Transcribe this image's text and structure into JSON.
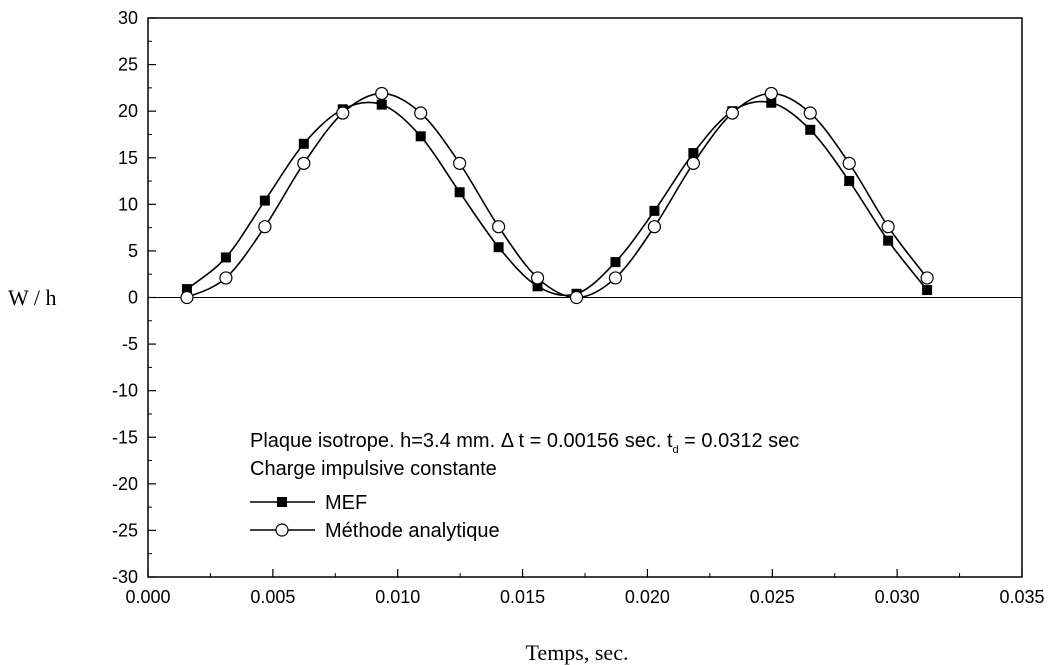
{
  "chart_data": {
    "type": "line",
    "xlabel": "Temps, sec.",
    "ylabel": "W / h",
    "xlim": [
      0.0,
      0.035
    ],
    "ylim": [
      -30,
      30
    ],
    "x_ticks": [
      "0.000",
      "0.005",
      "0.010",
      "0.015",
      "0.020",
      "0.025",
      "0.030",
      "0.035"
    ],
    "y_ticks": [
      "-30",
      "-25",
      "-20",
      "-15",
      "-10",
      "-5",
      "0",
      "5",
      "10",
      "15",
      "20",
      "25",
      "30"
    ],
    "grid": false,
    "zero_line": true,
    "annotation": {
      "line1_main": "Plaque isotrope. h=3.4 mm. Δ t = 0.00156 sec. t",
      "line1_sub": "d",
      "line1_tail": " = 0.0312 sec",
      "line2": "Charge impulsive constante"
    },
    "legend_position": "bottom-center",
    "series": [
      {
        "name": "MEF",
        "marker": "filled-square",
        "color": "#000000",
        "x": [
          0.00156,
          0.00312,
          0.00468,
          0.00624,
          0.0078,
          0.00936,
          0.01092,
          0.01248,
          0.01404,
          0.0156,
          0.01716,
          0.01872,
          0.02028,
          0.02184,
          0.0234,
          0.02496,
          0.02652,
          0.02808,
          0.02964,
          0.0312
        ],
        "y": [
          0.9,
          4.3,
          10.4,
          16.5,
          20.2,
          20.7,
          17.3,
          11.3,
          5.4,
          1.2,
          0.4,
          3.8,
          9.3,
          15.5,
          20.0,
          20.9,
          18.0,
          12.5,
          6.1,
          0.8
        ]
      },
      {
        "name": "Méthode analytique",
        "marker": "open-circle",
        "color": "#000000",
        "x": [
          0.00156,
          0.00312,
          0.00468,
          0.00624,
          0.0078,
          0.00936,
          0.01092,
          0.01248,
          0.01404,
          0.0156,
          0.01716,
          0.01872,
          0.02028,
          0.02184,
          0.0234,
          0.02496,
          0.02652,
          0.02808,
          0.02964,
          0.0312
        ],
        "y": [
          0.0,
          2.1,
          7.6,
          14.4,
          19.8,
          21.9,
          19.8,
          14.4,
          7.6,
          2.1,
          0.0,
          2.1,
          7.6,
          14.4,
          19.8,
          21.9,
          19.8,
          14.4,
          7.6,
          2.1
        ]
      }
    ]
  }
}
